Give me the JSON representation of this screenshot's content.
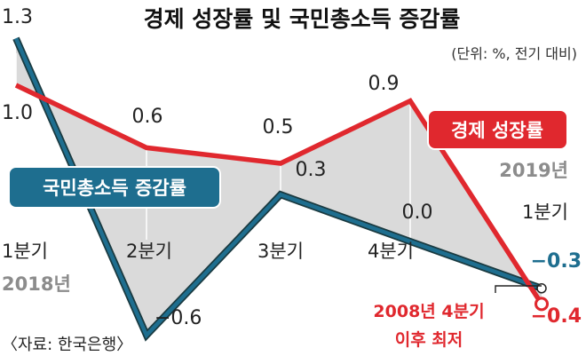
{
  "chart_data": {
    "type": "line",
    "title": "경제 성장률 및 국민총소득 증감률",
    "subtitle": "(단위: %, 전기 대비)",
    "categories": [
      "1분기",
      "2분기",
      "3분기",
      "4분기",
      "1분기"
    ],
    "year_labels": [
      "2018년",
      "2019년"
    ],
    "series": [
      {
        "name": "경제 성장률",
        "color": "#e0282e",
        "values": [
          1.0,
          0.6,
          0.5,
          0.9,
          -0.4
        ]
      },
      {
        "name": "국민총소득 증감률",
        "color": "#1e6e8f",
        "values": [
          1.3,
          -0.6,
          0.3,
          0.0,
          -0.3
        ]
      }
    ],
    "labels": {
      "gdp": [
        "1.0",
        "0.6",
        "0.5",
        "0.9",
        "−0.4"
      ],
      "gni": [
        "1.3",
        "−0.6",
        "0.3",
        "0.0",
        "−0.3"
      ]
    },
    "annotation": [
      "2008년 4분기",
      "이후 최저"
    ],
    "source": "〈자료: 한국은행〉",
    "grid": true,
    "ylim": [
      -0.7,
      1.35
    ]
  },
  "colors": {
    "gdp": "#e0282e",
    "gni": "#1e6e8f",
    "gni_outline": "#1a3a40",
    "area": "#dadada"
  }
}
